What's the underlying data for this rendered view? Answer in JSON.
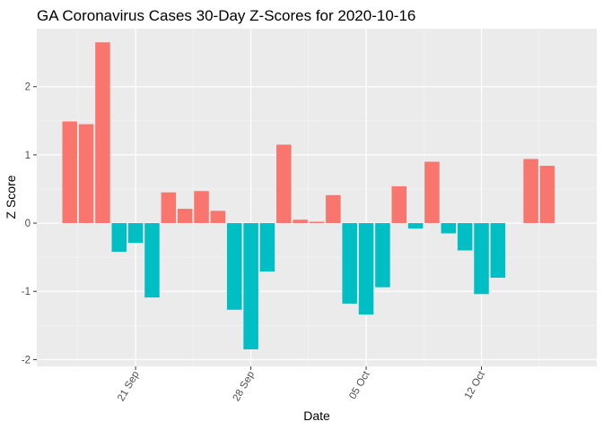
{
  "chart_data": {
    "type": "bar",
    "title": "GA Coronavirus Cases 30-Day Z-Scores for 2020-10-16",
    "xlabel": "Date",
    "ylabel": "Z Score",
    "ylim": [
      -2.1,
      2.85
    ],
    "y_ticks": [
      -2,
      -1,
      0,
      1,
      2
    ],
    "x_ticks": [
      {
        "label": "21 Sep",
        "date": "2020-09-21"
      },
      {
        "label": "28 Sep",
        "date": "2020-09-28"
      },
      {
        "label": "05 Oct",
        "date": "2020-10-05"
      },
      {
        "label": "12 Oct",
        "date": "2020-10-12"
      }
    ],
    "x_range": [
      "2020-09-15",
      "2020-10-19"
    ],
    "grid": true,
    "legend": "none",
    "colors": {
      "positive": "#F8766D",
      "negative": "#00BFC4",
      "panel_background": "#EBEBEB",
      "grid_major": "#FFFFFF",
      "grid_minor": "#F5F5F5"
    },
    "series": [
      {
        "points": [
          {
            "date": "2020-09-17",
            "value": 1.49
          },
          {
            "date": "2020-09-18",
            "value": 1.45
          },
          {
            "date": "2020-09-19",
            "value": 2.65
          },
          {
            "date": "2020-09-20",
            "value": -0.42
          },
          {
            "date": "2020-09-21",
            "value": -0.29
          },
          {
            "date": "2020-09-22",
            "value": -1.09
          },
          {
            "date": "2020-09-23",
            "value": 0.45
          },
          {
            "date": "2020-09-24",
            "value": 0.21
          },
          {
            "date": "2020-09-25",
            "value": 0.47
          },
          {
            "date": "2020-09-26",
            "value": 0.18
          },
          {
            "date": "2020-09-27",
            "value": -1.27
          },
          {
            "date": "2020-09-28",
            "value": -1.85
          },
          {
            "date": "2020-09-29",
            "value": -0.71
          },
          {
            "date": "2020-09-30",
            "value": 1.15
          },
          {
            "date": "2020-10-01",
            "value": 0.05
          },
          {
            "date": "2020-10-02",
            "value": 0.02
          },
          {
            "date": "2020-10-03",
            "value": 0.41
          },
          {
            "date": "2020-10-04",
            "value": -1.18
          },
          {
            "date": "2020-10-05",
            "value": -1.34
          },
          {
            "date": "2020-10-06",
            "value": -0.94
          },
          {
            "date": "2020-10-07",
            "value": 0.54
          },
          {
            "date": "2020-10-08",
            "value": -0.08
          },
          {
            "date": "2020-10-09",
            "value": 0.9
          },
          {
            "date": "2020-10-10",
            "value": -0.15
          },
          {
            "date": "2020-10-11",
            "value": -0.4
          },
          {
            "date": "2020-10-12",
            "value": -1.04
          },
          {
            "date": "2020-10-13",
            "value": -0.8
          },
          {
            "date": "2020-10-14",
            "value": 0.0
          },
          {
            "date": "2020-10-15",
            "value": 0.94
          },
          {
            "date": "2020-10-16",
            "value": 0.84
          }
        ]
      }
    ]
  }
}
